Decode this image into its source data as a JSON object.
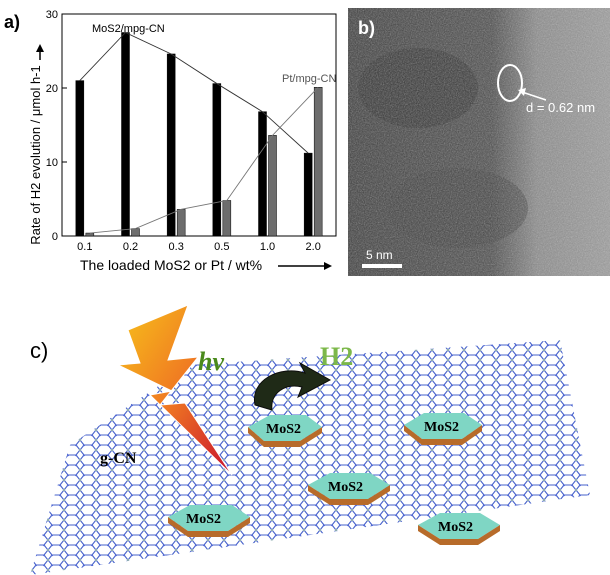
{
  "panel_a": {
    "label": "a)",
    "chart_data": {
      "type": "bar",
      "categories": [
        "0.1",
        "0.2",
        "0.3",
        "0.5",
        "1.0",
        "2.0"
      ],
      "series": [
        {
          "name": "MoS2/mpg-CN",
          "values": [
            21.0,
            27.5,
            24.6,
            20.6,
            16.8,
            11.2
          ],
          "color": "#000000"
        },
        {
          "name": "Pt/mpg-CN",
          "values": [
            0.4,
            1.0,
            3.6,
            4.8,
            13.6,
            20.1
          ],
          "color": "#6d6d6d"
        }
      ],
      "ylim": [
        0,
        30
      ],
      "yticks": [
        0,
        10,
        20,
        30
      ],
      "ylabel": "Rate of H2 evolution / μmol h-1",
      "xlabel": "The loaded MoS2 or Pt / wt%",
      "annotation_mos2": "MoS2/mpg-CN",
      "annotation_pt": "Pt/mpg-CN",
      "grid": false
    }
  },
  "panel_b": {
    "label": "b)",
    "d_spacing": "d = 0.62 nm",
    "scale_bar": "5 nm"
  },
  "panel_c": {
    "label": "c)",
    "hv": "hv",
    "h2": "H2",
    "gcn": "g-CN",
    "mos2": "MoS2"
  }
}
